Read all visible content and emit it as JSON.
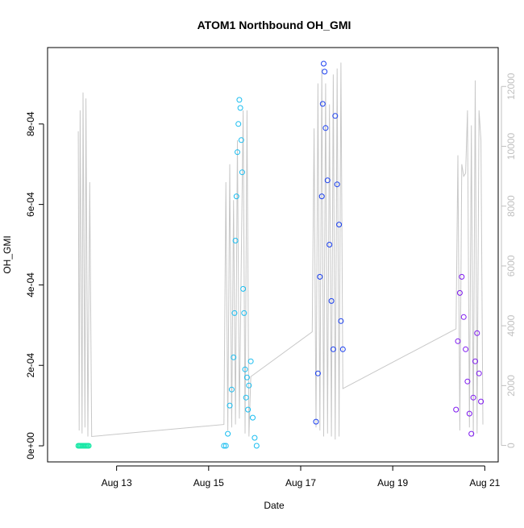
{
  "chart_data": {
    "type": "scatter",
    "title": "ATOM1 Northbound OH_GMI",
    "xlabel": "Date",
    "ylabel": "OH_GMI",
    "x_unit": "days",
    "xlim": [
      "2016-08-11 12:00",
      "2016-08-21 07:00"
    ],
    "ylim": [
      -4e-05,
      0.00099
    ],
    "y2lim": [
      -550,
      13300
    ],
    "x_ticks": [
      {
        "label": "Aug 13",
        "value": "2016-08-13"
      },
      {
        "label": "Aug 15",
        "value": "2016-08-15"
      },
      {
        "label": "Aug 17",
        "value": "2016-08-17"
      },
      {
        "label": "Aug 19",
        "value": "2016-08-19"
      },
      {
        "label": "Aug 21",
        "value": "2016-08-21"
      }
    ],
    "y_ticks": [
      {
        "label": "0e+00",
        "value": 0
      },
      {
        "label": "2e-04",
        "value": 0.0002
      },
      {
        "label": "4e-04",
        "value": 0.0004
      },
      {
        "label": "6e-04",
        "value": 0.0006
      },
      {
        "label": "8e-04",
        "value": 0.0008
      }
    ],
    "y2_ticks": [
      {
        "label": "0",
        "value": 0
      },
      {
        "label": "2000",
        "value": 2000
      },
      {
        "label": "4000",
        "value": 4000
      },
      {
        "label": "6000",
        "value": 6000
      },
      {
        "label": "8000",
        "value": 8000
      },
      {
        "label": "10000",
        "value": 10000
      },
      {
        "label": "12000",
        "value": 12000
      }
    ],
    "grid": false,
    "marker": "open circle",
    "colors": {
      "seg1": "#19e8a6",
      "seg2": "#19bdf0",
      "seg3": "#1a3ff0",
      "seg4": "#7e19f0",
      "altitude": "#c8c8c8",
      "axis": "#000000",
      "y2_axis": "#c0c0c0"
    },
    "series": [
      {
        "color": "#19e8a6",
        "points": [
          [
            "2016-08-12 04:00",
            0.0
          ],
          [
            "2016-08-12 04:30",
            0.0
          ],
          [
            "2016-08-12 05:00",
            0.0
          ],
          [
            "2016-08-12 05:30",
            0.0
          ],
          [
            "2016-08-12 06:00",
            0.0
          ],
          [
            "2016-08-12 06:30",
            0.0
          ],
          [
            "2016-08-12 07:00",
            0.0
          ],
          [
            "2016-08-12 07:30",
            0.0
          ],
          [
            "2016-08-12 08:00",
            0.0
          ],
          [
            "2016-08-12 08:30",
            0.0
          ],
          [
            "2016-08-12 09:00",
            0.0
          ],
          [
            "2016-08-12 09:30",
            0.0
          ]
        ]
      },
      {
        "color": "#19bdf0",
        "points": [
          [
            "2016-08-15 08:00",
            0.0
          ],
          [
            "2016-08-15 09:00",
            0.0
          ],
          [
            "2016-08-15 10:00",
            3e-05
          ],
          [
            "2016-08-15 11:00",
            0.0001
          ],
          [
            "2016-08-15 12:00",
            0.00014
          ],
          [
            "2016-08-15 13:00",
            0.00022
          ],
          [
            "2016-08-15 13:30",
            0.00033
          ],
          [
            "2016-08-15 14:00",
            0.00051
          ],
          [
            "2016-08-15 14:30",
            0.00062
          ],
          [
            "2016-08-15 15:00",
            0.00073
          ],
          [
            "2016-08-15 15:30",
            0.0008
          ],
          [
            "2016-08-15 16:00",
            0.00086
          ],
          [
            "2016-08-15 16:30",
            0.00084
          ],
          [
            "2016-08-15 17:00",
            0.00076
          ],
          [
            "2016-08-15 17:30",
            0.00068
          ],
          [
            "2016-08-15 18:00",
            0.00039
          ],
          [
            "2016-08-15 18:30",
            0.00033
          ],
          [
            "2016-08-15 19:00",
            0.00019
          ],
          [
            "2016-08-15 19:30",
            0.00012
          ],
          [
            "2016-08-15 20:00",
            0.00017
          ],
          [
            "2016-08-15 20:30",
            9e-05
          ],
          [
            "2016-08-15 21:00",
            0.00015
          ],
          [
            "2016-08-15 22:00",
            0.00021
          ],
          [
            "2016-08-15 23:00",
            7e-05
          ],
          [
            "2016-08-16 00:00",
            2e-05
          ],
          [
            "2016-08-16 01:00",
            0.0
          ]
        ]
      },
      {
        "color": "#1a3ff0",
        "points": [
          [
            "2016-08-17 08:00",
            6e-05
          ],
          [
            "2016-08-17 09:00",
            0.00018
          ],
          [
            "2016-08-17 10:00",
            0.00042
          ],
          [
            "2016-08-17 11:00",
            0.00062
          ],
          [
            "2016-08-17 11:30",
            0.00085
          ],
          [
            "2016-08-17 12:00",
            0.00095
          ],
          [
            "2016-08-17 12:30",
            0.00093
          ],
          [
            "2016-08-17 13:00",
            0.00079
          ],
          [
            "2016-08-17 14:00",
            0.00066
          ],
          [
            "2016-08-17 15:00",
            0.0005
          ],
          [
            "2016-08-17 16:00",
            0.00036
          ],
          [
            "2016-08-17 17:00",
            0.00024
          ],
          [
            "2016-08-17 18:00",
            0.00082
          ],
          [
            "2016-08-17 19:00",
            0.00065
          ],
          [
            "2016-08-17 20:00",
            0.00055
          ],
          [
            "2016-08-17 21:00",
            0.00031
          ],
          [
            "2016-08-17 22:00",
            0.00024
          ]
        ]
      },
      {
        "color": "#7e19f0",
        "points": [
          [
            "2016-08-20 09:00",
            9e-05
          ],
          [
            "2016-08-20 10:00",
            0.00026
          ],
          [
            "2016-08-20 11:00",
            0.00038
          ],
          [
            "2016-08-20 12:00",
            0.00042
          ],
          [
            "2016-08-20 13:00",
            0.00032
          ],
          [
            "2016-08-20 14:00",
            0.00024
          ],
          [
            "2016-08-20 15:00",
            0.00016
          ],
          [
            "2016-08-20 16:00",
            8e-05
          ],
          [
            "2016-08-20 17:00",
            3e-05
          ],
          [
            "2016-08-20 18:00",
            0.00012
          ],
          [
            "2016-08-20 19:00",
            0.00021
          ],
          [
            "2016-08-20 20:00",
            0.00028
          ],
          [
            "2016-08-20 21:00",
            0.00018
          ],
          [
            "2016-08-20 22:00",
            0.00011
          ]
        ]
      }
    ],
    "altitude_series": {
      "color": "#c8c8c8",
      "axis": "right",
      "points": [
        [
          "2016-08-12 04:00",
          10500
        ],
        [
          "2016-08-12 04:30",
          500
        ],
        [
          "2016-08-12 05:00",
          11200
        ],
        [
          "2016-08-12 06:00",
          400
        ],
        [
          "2016-08-12 06:30",
          11800
        ],
        [
          "2016-08-12 07:30",
          600
        ],
        [
          "2016-08-12 08:00",
          11600
        ],
        [
          "2016-08-12 09:00",
          300
        ],
        [
          "2016-08-12 10:00",
          8800
        ],
        [
          "2016-08-12 11:00",
          300
        ],
        [
          "2016-08-15 08:00",
          700
        ],
        [
          "2016-08-15 09:00",
          8800
        ],
        [
          "2016-08-15 10:00",
          500
        ],
        [
          "2016-08-15 11:00",
          9400
        ],
        [
          "2016-08-15 12:00",
          600
        ],
        [
          "2016-08-15 13:00",
          8200
        ],
        [
          "2016-08-15 14:00",
          700
        ],
        [
          "2016-08-15 15:00",
          10200
        ],
        [
          "2016-08-15 16:00",
          900
        ],
        [
          "2016-08-15 18:00",
          11200
        ],
        [
          "2016-08-15 19:00",
          400
        ],
        [
          "2016-08-15 20:00",
          11200
        ],
        [
          "2016-08-15 21:00",
          300
        ],
        [
          "2016-08-15 22:00",
          2300
        ],
        [
          "2016-08-17 06:00",
          3800
        ],
        [
          "2016-08-17 07:00",
          10600
        ],
        [
          "2016-08-17 08:00",
          600
        ],
        [
          "2016-08-17 09:00",
          12100
        ],
        [
          "2016-08-17 10:00",
          500
        ],
        [
          "2016-08-17 11:00",
          12600
        ],
        [
          "2016-08-17 12:00",
          300
        ],
        [
          "2016-08-17 13:00",
          12100
        ],
        [
          "2016-08-17 14:00",
          400
        ],
        [
          "2016-08-17 15:00",
          11400
        ],
        [
          "2016-08-17 16:00",
          300
        ],
        [
          "2016-08-17 17:00",
          12400
        ],
        [
          "2016-08-17 18:00",
          200
        ],
        [
          "2016-08-17 19:00",
          12600
        ],
        [
          "2016-08-17 20:00",
          300
        ],
        [
          "2016-08-17 21:00",
          12800
        ],
        [
          "2016-08-17 22:00",
          1900
        ],
        [
          "2016-08-20 09:00",
          3900
        ],
        [
          "2016-08-20 10:00",
          9700
        ],
        [
          "2016-08-20 11:00",
          500
        ],
        [
          "2016-08-20 12:00",
          9400
        ],
        [
          "2016-08-20 13:00",
          9000
        ],
        [
          "2016-08-20 14:00",
          9100
        ],
        [
          "2016-08-20 15:00",
          11200
        ],
        [
          "2016-08-20 16:00",
          600
        ],
        [
          "2016-08-20 17:00",
          10700
        ],
        [
          "2016-08-20 18:00",
          300
        ],
        [
          "2016-08-20 19:00",
          12200
        ],
        [
          "2016-08-20 20:00",
          400
        ],
        [
          "2016-08-20 21:00",
          11200
        ],
        [
          "2016-08-20 22:00",
          10200
        ],
        [
          "2016-08-20 23:00",
          700
        ]
      ]
    }
  }
}
